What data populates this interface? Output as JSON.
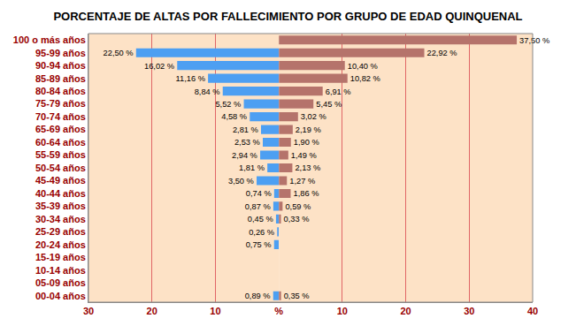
{
  "chart_data": {
    "type": "bar",
    "title": "PORCENTAJE DE ALTAS POR FALLECIMIENTO POR GRUPO DE EDAD QUINQUENAL",
    "orientation": "horizontal",
    "categories": [
      "100 o más años",
      "95-99 años",
      "90-94 años",
      "85-89 años",
      "80-84 años",
      "75-79 años",
      "70-74 años",
      "65-69 años",
      "60-64 años",
      "55-59 años",
      "50-54 años",
      "45-49 años",
      "40-44 años",
      "35-39 años",
      "30-34 años",
      "25-29 años",
      "20-24 años",
      "15-19 años",
      "10-14 años",
      "05-09 años",
      "00-04 años"
    ],
    "series": [
      {
        "color": "#4d9ff2",
        "axis": "x2",
        "values": [
          null,
          22.5,
          16.02,
          11.16,
          8.84,
          5.52,
          4.58,
          2.81,
          2.53,
          2.94,
          1.81,
          3.5,
          0.74,
          0.87,
          0.45,
          0.26,
          0.75,
          null,
          null,
          null,
          0.89
        ],
        "value_labels": [
          null,
          "22,50 %",
          "16,02 %",
          "11,16 %",
          "8,84 %",
          "5,52 %",
          "4,58 %",
          "2,81 %",
          "2,53 %",
          "2,94 %",
          "1,81 %",
          "3,50 %",
          "0,74 %",
          "0,87 %",
          "0,45 %",
          "0,26 %",
          "0,75 %",
          null,
          null,
          null,
          "0,89 %"
        ]
      },
      {
        "color": "#b5736b",
        "values": [
          37.5,
          22.92,
          10.4,
          10.82,
          6.91,
          5.45,
          3.02,
          2.19,
          1.9,
          1.49,
          2.13,
          1.27,
          1.86,
          0.59,
          0.33,
          null,
          null,
          null,
          null,
          null,
          0.35
        ],
        "value_labels": [
          "37,50 %",
          "22,92 %",
          "10,40 %",
          "10,82 %",
          "6,91 %",
          "5,45 %",
          "3,02 %",
          "2,19 %",
          "1,90 %",
          "1,49 %",
          "2,13 %",
          "1,27 %",
          "1,86 %",
          "0,59 %",
          "0,33 %",
          null,
          null,
          null,
          null,
          null,
          "0,35 %"
        ]
      }
    ],
    "xlim": [
      0,
      40
    ],
    "xticks": [
      {
        "value": 0,
        "label": "%"
      },
      10,
      20,
      30,
      40
    ],
    "x2lim": [
      30,
      0
    ],
    "x2ticks": [
      30,
      20,
      10
    ],
    "grid": true,
    "data_labels": true
  }
}
